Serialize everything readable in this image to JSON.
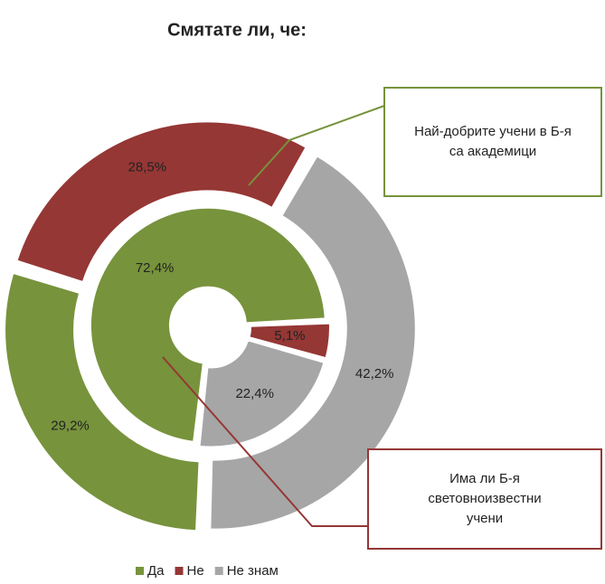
{
  "chart_data": {
    "type": "donut",
    "title": "Смятате ли, че:",
    "categories": [
      "Да",
      "Не",
      "Не знам"
    ],
    "colors": [
      "#77933c",
      "#953735",
      "#a6a6a6"
    ],
    "rings": [
      {
        "values": [
          72.4,
          5.1,
          22.4
        ],
        "value_labels": [
          "72,4%",
          "5,1%",
          "22,4%"
        ]
      },
      {
        "values": [
          29.2,
          28.5,
          42.2
        ],
        "value_labels": [
          "29,2%",
          "28,5%",
          "42,2%"
        ]
      }
    ],
    "annotations": [
      {
        "lines": [
          "Най-добрите учени в Б-я",
          "са академици"
        ],
        "color": "#77933c"
      },
      {
        "lines": [
          "Има ли Б-я",
          "световноизвестни",
          "учени"
        ],
        "color": "#953735"
      }
    ],
    "legend": "bottom"
  }
}
